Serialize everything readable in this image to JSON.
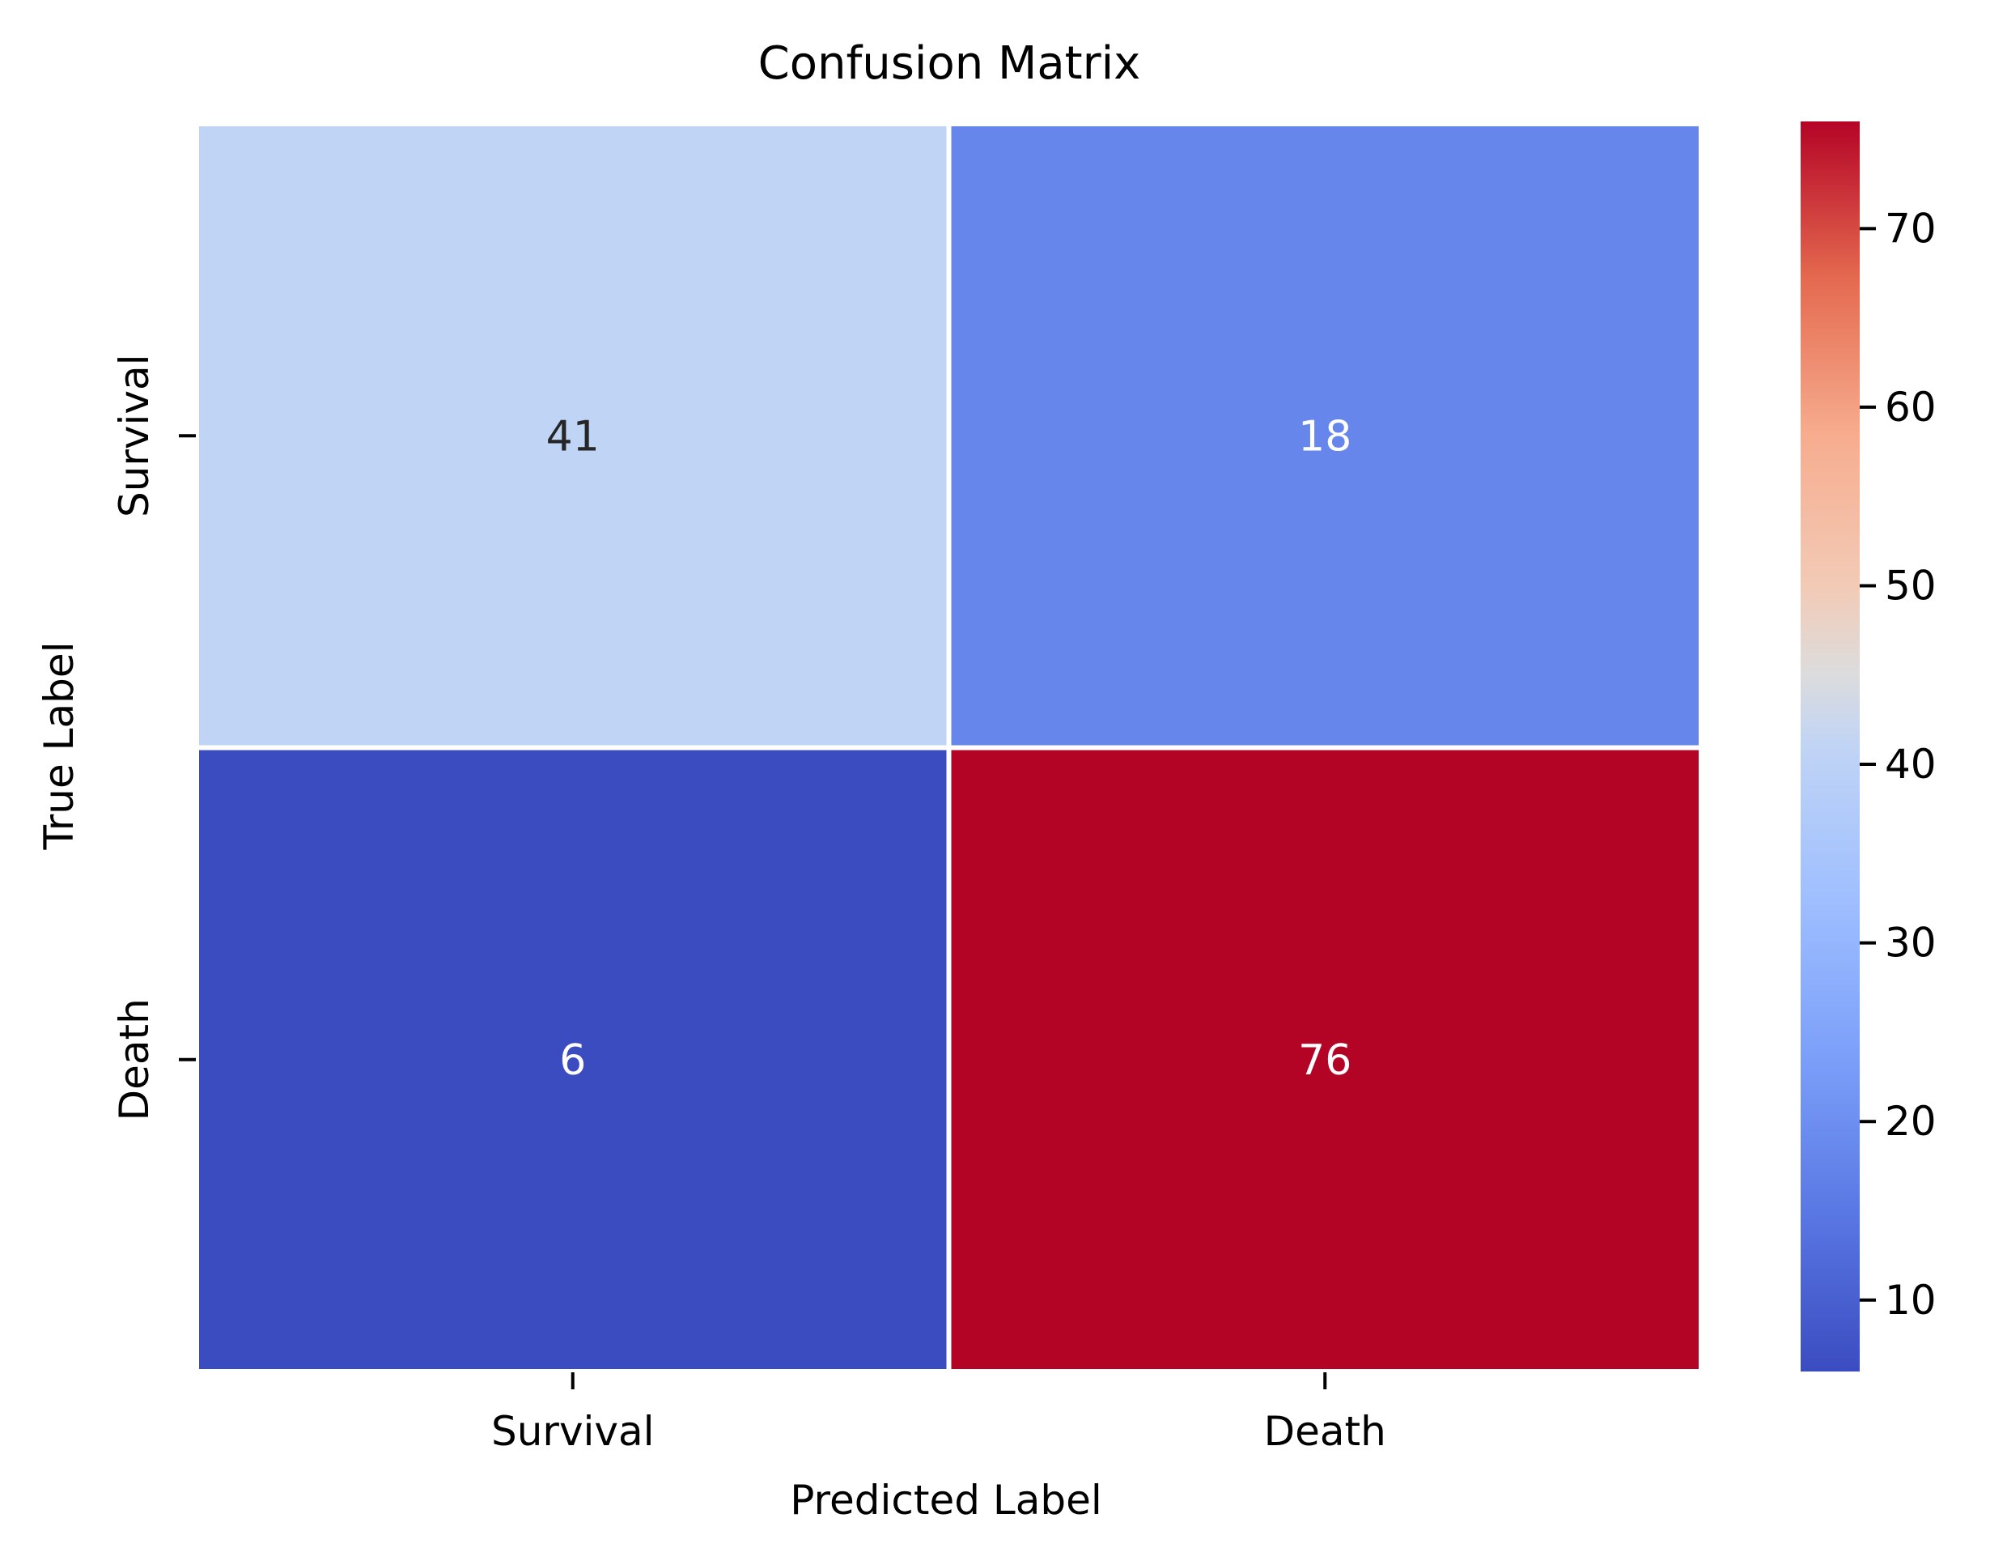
{
  "chart_data": {
    "type": "heatmap",
    "title": "Confusion Matrix",
    "xlabel": "Predicted Label",
    "ylabel": "True Label",
    "x_categories": [
      "Survival",
      "Death"
    ],
    "y_categories": [
      "Survival",
      "Death"
    ],
    "values": [
      [
        41,
        18
      ],
      [
        6,
        76
      ]
    ],
    "colormap": "coolwarm",
    "colorbar": {
      "range": [
        6,
        76
      ],
      "ticks": [
        10,
        20,
        30,
        40,
        50,
        60,
        70
      ]
    },
    "annotation_colors": {
      "dark": "#262626",
      "light": "#ffffff"
    }
  }
}
